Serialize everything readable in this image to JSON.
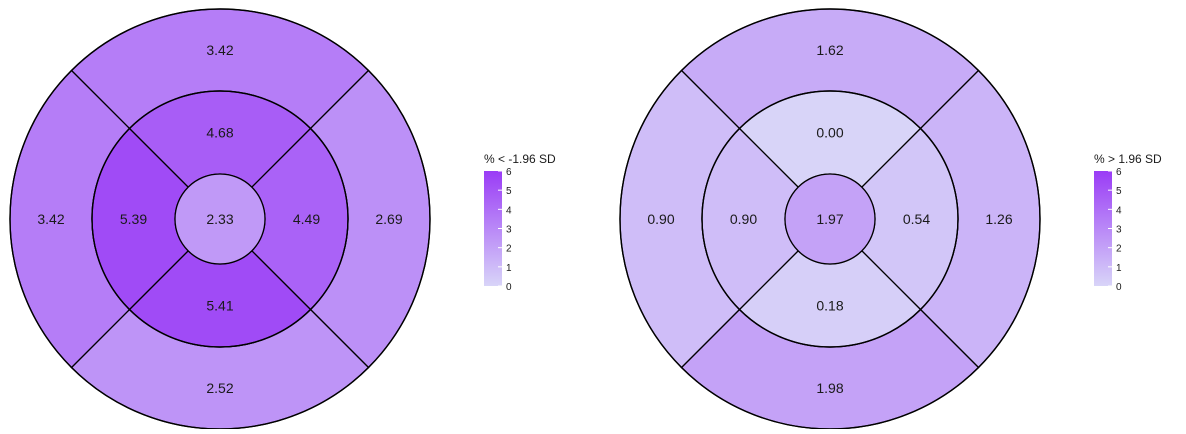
{
  "chart_data": [
    {
      "type": "heatmap",
      "layout": "polar segment map (bullseye)",
      "legend_title": "% < -1.96 SD",
      "color_scale": {
        "min": 0,
        "max": 6,
        "low_color": "#d8d4f8",
        "high_color": "#9a3cf6",
        "ticks": [
          "6",
          "5",
          "4",
          "3",
          "2",
          "1",
          "0"
        ]
      },
      "segments": {
        "outer_top": {
          "value": 3.42,
          "label": "3.42"
        },
        "outer_right": {
          "value": 2.69,
          "label": "2.69"
        },
        "outer_bottom": {
          "value": 2.52,
          "label": "2.52"
        },
        "outer_left": {
          "value": 3.42,
          "label": "3.42"
        },
        "inner_top": {
          "value": 4.68,
          "label": "4.68"
        },
        "inner_right": {
          "value": 4.49,
          "label": "4.49"
        },
        "inner_bottom": {
          "value": 5.41,
          "label": "5.41"
        },
        "inner_left": {
          "value": 5.39,
          "label": "5.39"
        },
        "center": {
          "value": 2.33,
          "label": "2.33"
        }
      }
    },
    {
      "type": "heatmap",
      "layout": "polar segment map (bullseye)",
      "legend_title": "% > 1.96 SD",
      "color_scale": {
        "min": 0,
        "max": 6,
        "low_color": "#d8d4f8",
        "high_color": "#9a3cf6",
        "ticks": [
          "6",
          "5",
          "4",
          "3",
          "2",
          "1",
          "0"
        ]
      },
      "segments": {
        "outer_top": {
          "value": 1.62,
          "label": "1.62"
        },
        "outer_right": {
          "value": 1.26,
          "label": "1.26"
        },
        "outer_bottom": {
          "value": 1.98,
          "label": "1.98"
        },
        "outer_left": {
          "value": 0.9,
          "label": "0.90"
        },
        "inner_top": {
          "value": 0.0,
          "label": "0.00"
        },
        "inner_right": {
          "value": 0.54,
          "label": "0.54"
        },
        "inner_bottom": {
          "value": 0.18,
          "label": "0.18"
        },
        "inner_left": {
          "value": 0.9,
          "label": "0.90"
        },
        "center": {
          "value": 1.97,
          "label": "1.97"
        }
      }
    }
  ]
}
